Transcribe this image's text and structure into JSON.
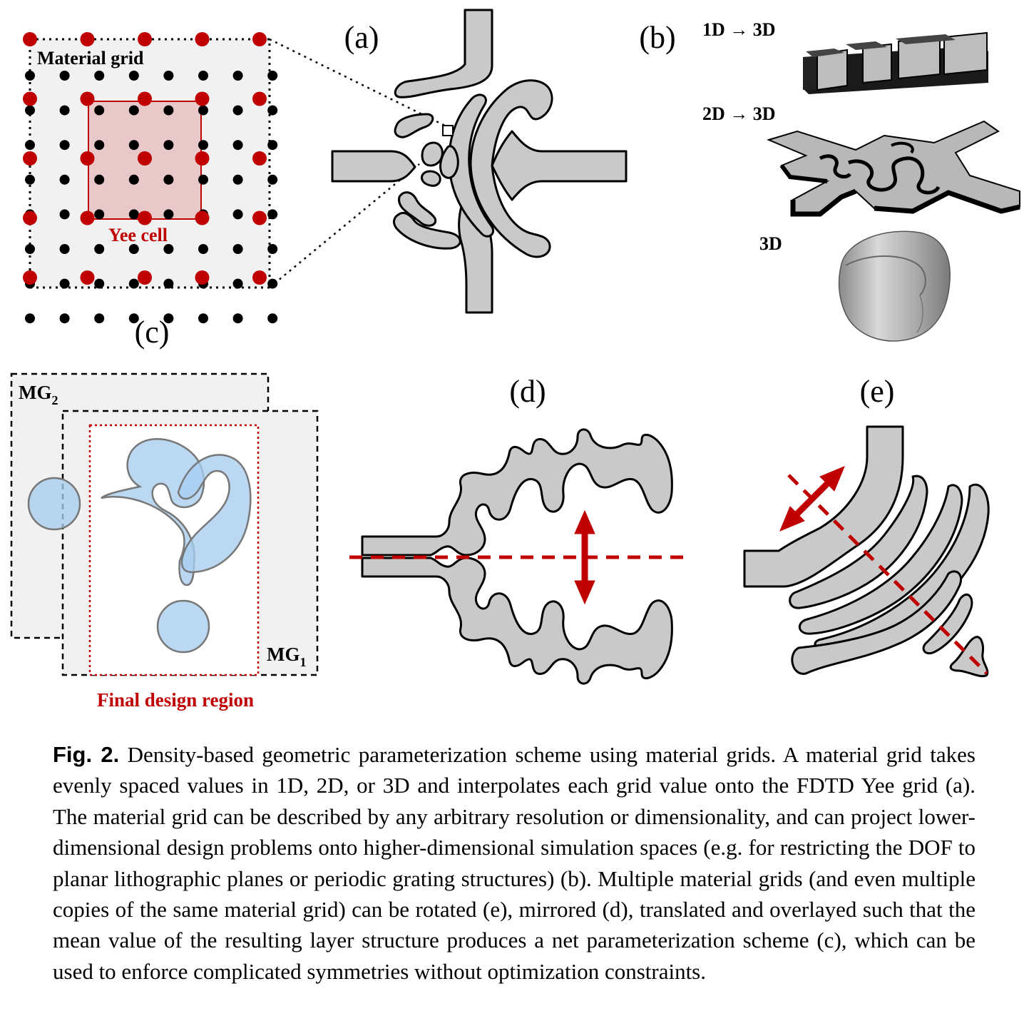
{
  "figure": {
    "panel_labels": {
      "a": "(a)",
      "b": "(b)",
      "c": "(c)",
      "d": "(d)",
      "e": "(e)"
    },
    "material_grid_label": "Material grid",
    "yee_cell_label": "Yee cell",
    "dim_labels": [
      "1D → 3D",
      "2D → 3D",
      "3D"
    ],
    "mg2_label": "MG",
    "mg2_sub": "2",
    "mg1_label": "MG",
    "mg1_sub": "1",
    "final_design_label": "Final design region"
  },
  "caption": {
    "fig_label": "Fig. 2.",
    "text": "Density-based geometric parameterization scheme using material grids. A material grid takes evenly spaced values in 1D, 2D, or 3D and interpolates each grid value onto the FDTD Yee grid (a). The material grid can be described by any arbitrary resolution or dimensionality, and can project lower-dimensional design problems onto higher-dimensional simulation spaces (e.g. for restricting the DOF to planar lithographic planes or periodic grating structures) (b). Multiple material grids (and even multiple copies of the same material grid) can be rotated (e), mirrored (d), translated and overlayed such that the mean value of the resulting layer structure produces a net parameterization scheme (c), which can be used to enforce complicated symmetries without optimization constraints."
  },
  "colors": {
    "accent_red": "#c00000",
    "gray_fill": "#c9c9c9",
    "panel_bg": "#f1f1f1",
    "blue_fill": "#a8cdef"
  }
}
